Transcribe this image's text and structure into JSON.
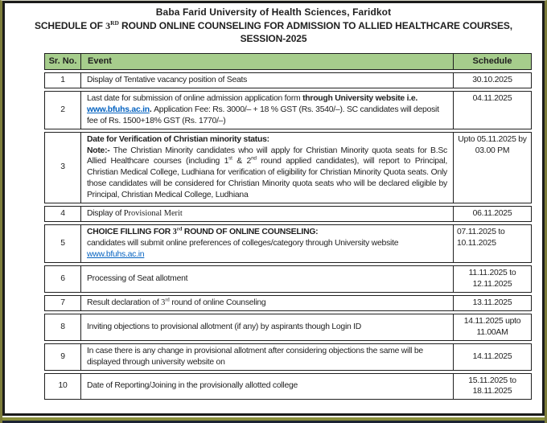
{
  "header": {
    "university": "Baba Farid University of Health Sciences, Faridkot",
    "schedule_title": [
      {
        "align": "center",
        "segments": [
          {
            "text": "SCHEDULE OF ",
            "bold": true
          },
          {
            "text": "3",
            "bold": true,
            "serif": true
          },
          {
            "text": "RD",
            "bold": true,
            "serif": true,
            "sup": true
          },
          {
            "text": " ROUND ONLINE COUNSELING FOR ADMISSION TO ALLIED HEALTHCARE COURSES,",
            "bold": true
          }
        ]
      },
      {
        "align": "center",
        "segments": [
          {
            "text": "SESSION-2025",
            "bold": true
          }
        ]
      }
    ]
  },
  "table": {
    "headers": {
      "sr": "Sr. No.",
      "event": "Event",
      "schedule": "Schedule"
    },
    "rows": [
      {
        "sr": "1",
        "event": [
          {
            "segments": [
              {
                "text": "Display of Tentative vacancy position of Seats"
              }
            ]
          }
        ],
        "schedule": [
          {
            "segments": [
              {
                "text": "30.10.2025"
              }
            ]
          }
        ],
        "sched_valign": "middle",
        "sched_align": "center"
      },
      {
        "sr": "2",
        "event": [
          {
            "segments": [
              {
                "text": "Last date for submission of online admission application form "
              },
              {
                "text": "through University website i.e. ",
                "bold": true
              },
              {
                "text": "www.bfuhs.ac.in",
                "bold": true,
                "link": true
              },
              {
                "text": ". ",
                "bold": true
              },
              {
                "text": "Application Fee: Rs. 3000/– + 18 % GST (Rs. 3540/–). SC candidates will deposit fee of Rs. 1500+18% GST (Rs. 1770/–)"
              }
            ]
          }
        ],
        "schedule": [
          {
            "segments": [
              {
                "text": "04.11.2025"
              }
            ]
          }
        ],
        "sched_valign": "top",
        "sched_align": "center"
      },
      {
        "sr": "3",
        "event": [
          {
            "segments": [
              {
                "text": "Date for Verification of Christian minority status:",
                "bold": true
              }
            ]
          },
          {
            "align": "justify",
            "segments": [
              {
                "text": "Note:-",
                "bold": true
              },
              {
                "text": " The Christian Minority candidates who will apply for Christian Minority quota seats for B.Sc Allied Healthcare courses (including 1"
              },
              {
                "text": "st",
                "sup": true
              },
              {
                "text": " & 2"
              },
              {
                "text": "nd",
                "sup": true
              },
              {
                "text": " round applied candidates), will report to Principal, Christian Medical College, Ludhiana for verification of eligibility for Christian Minority Quota seats. Only those candidates will be considered for Christian Minority quota seats who will be declared eligible by Principal, Christian Medical College, Ludhiana"
              }
            ]
          }
        ],
        "schedule": [
          {
            "segments": [
              {
                "text": "Upto 05.11.2025 by 03.00 PM"
              }
            ]
          }
        ],
        "sched_valign": "top",
        "sched_align": "center"
      },
      {
        "sr": "4",
        "event": [
          {
            "segments": [
              {
                "text": "Display of "
              },
              {
                "text": "Provisional Merit",
                "serif": true
              }
            ]
          }
        ],
        "schedule": [
          {
            "segments": [
              {
                "text": "06.11.2025"
              }
            ]
          }
        ],
        "sched_valign": "middle",
        "sched_align": "center"
      },
      {
        "sr": "5",
        "event": [
          {
            "segments": [
              {
                "text": "CHOICE FILLING FOR ",
                "bold": true
              },
              {
                "text": "3",
                "bold": true,
                "serif": true
              },
              {
                "text": "rd",
                "bold": true,
                "serif": true,
                "sup": true
              },
              {
                "text": " ROUND OF ONLINE COUNSELING:",
                "bold": true
              }
            ]
          },
          {
            "segments": [
              {
                "text": "candidates will submit online preferences of colleges/category through University website "
              },
              {
                "text": "www.bfuhs.ac.in",
                "link": true
              }
            ]
          }
        ],
        "schedule": [
          {
            "segments": [
              {
                "text": "07.11.2025 to 10.11.2025"
              }
            ]
          }
        ],
        "sched_valign": "top",
        "sched_align": "left"
      },
      {
        "sr": "6",
        "event": [
          {
            "segments": [
              {
                "text": "Processing of Seat allotment"
              }
            ]
          }
        ],
        "schedule": [
          {
            "segments": [
              {
                "text": "11.11.2025 to 12.11.2025"
              }
            ]
          }
        ],
        "sched_valign": "middle",
        "sched_align": "center"
      },
      {
        "sr": "7",
        "event": [
          {
            "segments": [
              {
                "text": "Result declaration of "
              },
              {
                "text": "3",
                "serif": true
              },
              {
                "text": "rd",
                "serif": true,
                "sup": true
              },
              {
                "text": " round of online Counseling"
              }
            ]
          }
        ],
        "schedule": [
          {
            "segments": [
              {
                "text": "13.11.2025"
              }
            ]
          }
        ],
        "sched_valign": "middle",
        "sched_align": "center"
      },
      {
        "sr": "8",
        "event": [
          {
            "segments": [
              {
                "text": "Inviting objections to provisional allotment (if any) by aspirants though Login ID"
              }
            ]
          }
        ],
        "schedule": [
          {
            "segments": [
              {
                "text": "14.11.2025 upto 11.00AM"
              }
            ]
          }
        ],
        "sched_valign": "middle",
        "sched_align": "center"
      },
      {
        "sr": "9",
        "event": [
          {
            "segments": [
              {
                "text": "In case there is any change in provisional allotment after considering objections the same will be displayed through university website on"
              }
            ]
          }
        ],
        "schedule": [
          {
            "segments": [
              {
                "text": "14.11.2025"
              }
            ]
          }
        ],
        "sched_valign": "middle",
        "sched_align": "center"
      },
      {
        "sr": "10",
        "event": [
          {
            "segments": [
              {
                "text": "Date of Reporting/Joining in the provisionally allotted college"
              }
            ]
          }
        ],
        "schedule": [
          {
            "segments": [
              {
                "text": "15.11.2025 to 18.11.2025"
              }
            ]
          }
        ],
        "sched_valign": "middle",
        "sched_align": "center"
      }
    ]
  },
  "colors": {
    "header_row_bg": "#a6cd8c",
    "table_border": "#1f1f1f",
    "frame_border": "#1b1b1b",
    "page_edge_olive": "#7d7d3a",
    "bottom_band_green": "#8a8f3c",
    "bottom_band_dark": "#1c2333",
    "link": "#0563c1",
    "text": "#1f1f1f"
  }
}
